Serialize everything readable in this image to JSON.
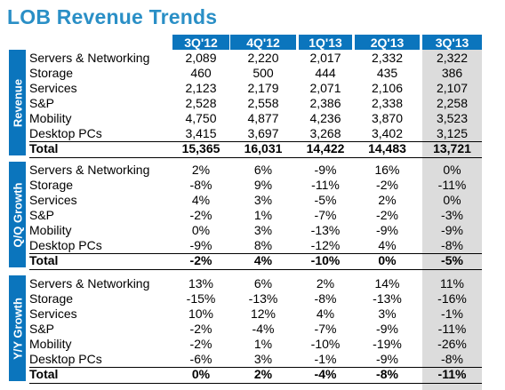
{
  "title": "LOB Revenue Trends",
  "columns": [
    "3Q'12",
    "4Q'12",
    "1Q'13",
    "2Q'13",
    "3Q'13"
  ],
  "sections": [
    {
      "name": "Revenue",
      "rows": [
        {
          "label": "Servers & Networking",
          "values": [
            "2,089",
            "2,220",
            "2,017",
            "2,332",
            "2,322"
          ]
        },
        {
          "label": "Storage",
          "values": [
            "460",
            "500",
            "444",
            "435",
            "386"
          ]
        },
        {
          "label": "Services",
          "values": [
            "2,123",
            "2,179",
            "2,071",
            "2,106",
            "2,107"
          ]
        },
        {
          "label": "S&P",
          "values": [
            "2,528",
            "2,558",
            "2,386",
            "2,338",
            "2,258"
          ]
        },
        {
          "label": "Mobility",
          "values": [
            "4,750",
            "4,877",
            "4,236",
            "3,870",
            "3,523"
          ]
        },
        {
          "label": "Desktop PCs",
          "values": [
            "3,415",
            "3,697",
            "3,268",
            "3,402",
            "3,125"
          ]
        }
      ],
      "total": {
        "label": "Total",
        "values": [
          "15,365",
          "16,031",
          "14,422",
          "14,483",
          "13,721"
        ]
      }
    },
    {
      "name": "Q/Q Growth",
      "rows": [
        {
          "label": "Servers & Networking",
          "values": [
            "2%",
            "6%",
            "-9%",
            "16%",
            "0%"
          ]
        },
        {
          "label": "Storage",
          "values": [
            "-8%",
            "9%",
            "-11%",
            "-2%",
            "-11%"
          ]
        },
        {
          "label": "Services",
          "values": [
            "4%",
            "3%",
            "-5%",
            "2%",
            "0%"
          ]
        },
        {
          "label": "S&P",
          "values": [
            "-2%",
            "1%",
            "-7%",
            "-2%",
            "-3%"
          ]
        },
        {
          "label": "Mobility",
          "values": [
            "0%",
            "3%",
            "-13%",
            "-9%",
            "-9%"
          ]
        },
        {
          "label": "Desktop PCs",
          "values": [
            "-9%",
            "8%",
            "-12%",
            "4%",
            "-8%"
          ]
        }
      ],
      "total": {
        "label": "Total",
        "values": [
          "-2%",
          "4%",
          "-10%",
          "0%",
          "-5%"
        ]
      }
    },
    {
      "name": "Y/Y Growth",
      "rows": [
        {
          "label": "Servers & Networking",
          "values": [
            "13%",
            "6%",
            "2%",
            "14%",
            "11%"
          ]
        },
        {
          "label": "Storage",
          "values": [
            "-15%",
            "-13%",
            "-8%",
            "-13%",
            "-16%"
          ]
        },
        {
          "label": "Services",
          "values": [
            "10%",
            "12%",
            "4%",
            "3%",
            "-1%"
          ]
        },
        {
          "label": "S&P",
          "values": [
            "-2%",
            "-4%",
            "-7%",
            "-9%",
            "-11%"
          ]
        },
        {
          "label": "Mobility",
          "values": [
            "-2%",
            "1%",
            "-10%",
            "-19%",
            "-26%"
          ]
        },
        {
          "label": "Desktop PCs",
          "values": [
            "-6%",
            "3%",
            "-1%",
            "-9%",
            "-8%"
          ]
        }
      ],
      "total": {
        "label": "Total",
        "values": [
          "0%",
          "2%",
          "-4%",
          "-8%",
          "-11%"
        ]
      }
    }
  ],
  "colors": {
    "accent": "#0b75bd",
    "title": "#2a8fc6",
    "highlight_column": "#dcdcdc"
  }
}
